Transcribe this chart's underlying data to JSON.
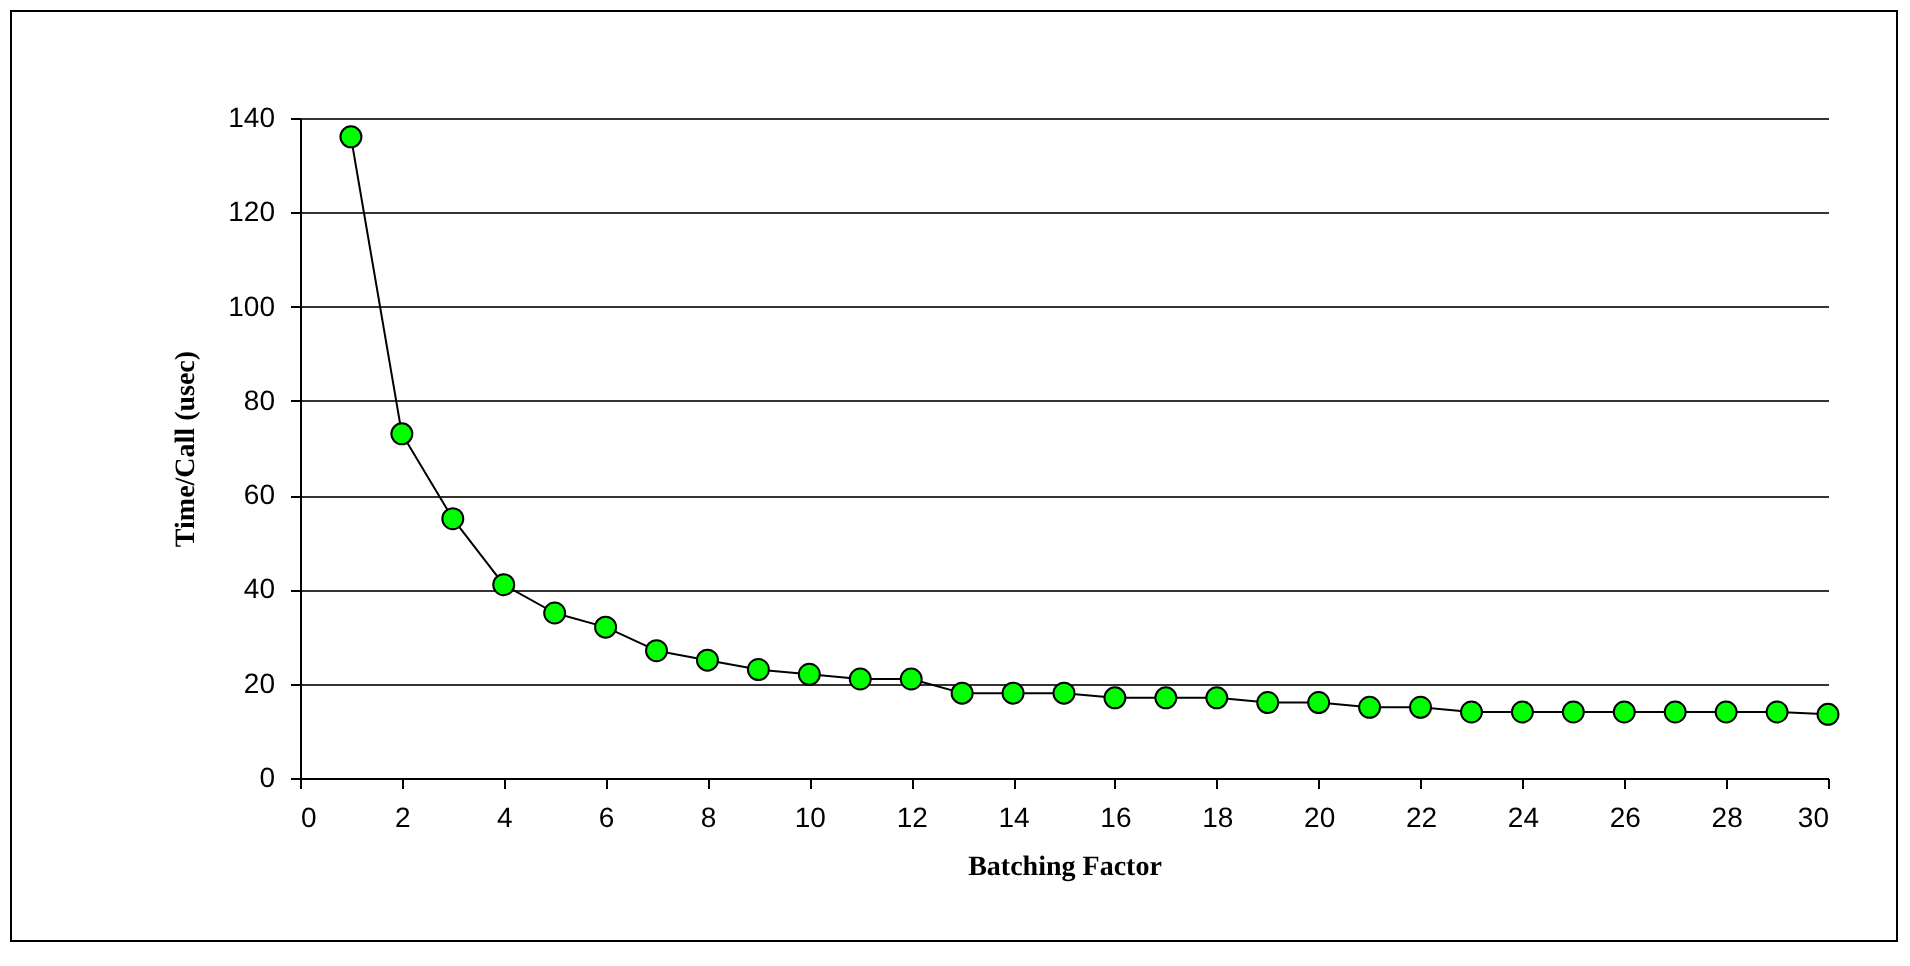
{
  "chart_data": {
    "type": "line",
    "xlabel": "Batching Factor",
    "ylabel": "Time/Call (usec)",
    "x": [
      1,
      2,
      3,
      4,
      5,
      6,
      7,
      8,
      9,
      10,
      11,
      12,
      13,
      14,
      15,
      16,
      17,
      18,
      19,
      20,
      21,
      22,
      23,
      24,
      25,
      26,
      27,
      28,
      29,
      30
    ],
    "series": [
      {
        "color": "#00ff00",
        "values": [
          136,
          73,
          55,
          41,
          35,
          32,
          27,
          25,
          23,
          22,
          21,
          21,
          18,
          18,
          18,
          17,
          17,
          17,
          16,
          16,
          15,
          15,
          14,
          14,
          14,
          14,
          14,
          14,
          14,
          13.5
        ]
      }
    ],
    "xlim": [
      0,
      30
    ],
    "xticks": [
      0,
      2,
      4,
      6,
      8,
      10,
      12,
      14,
      16,
      18,
      20,
      22,
      24,
      26,
      28,
      30
    ],
    "ylim": [
      0,
      140
    ],
    "yticks": [
      0,
      20,
      40,
      60,
      80,
      100,
      120,
      140
    ],
    "grid": "y",
    "marker": "circle",
    "line_style": "solid"
  }
}
